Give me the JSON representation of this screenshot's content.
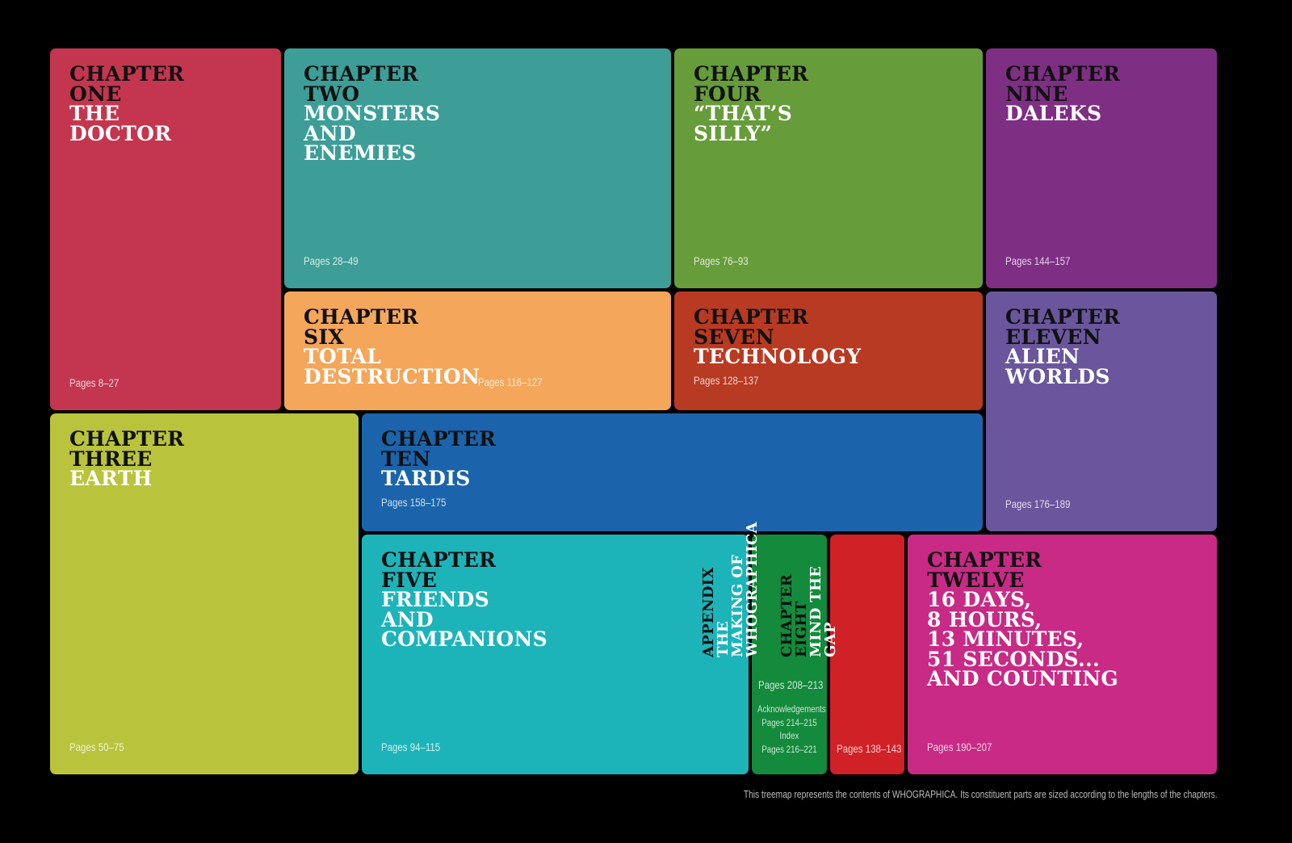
{
  "tiles": [
    {
      "id": "ch1",
      "kicker": [
        "Chapter",
        "One"
      ],
      "title": [
        "The",
        "Doctor"
      ],
      "pages": "Pages 8–27",
      "color": "#c4364f"
    },
    {
      "id": "ch2",
      "kicker": [
        "Chapter",
        "Two"
      ],
      "title": [
        "Monsters",
        "and",
        "Enemies"
      ],
      "pages": "Pages 28–49",
      "color": "#3d9e98"
    },
    {
      "id": "ch4",
      "kicker": [
        "Chapter",
        "Four"
      ],
      "title": [
        "“That’s",
        "Silly”"
      ],
      "pages": "Pages 76–93",
      "color": "#679c3a"
    },
    {
      "id": "ch9",
      "kicker": [
        "Chapter",
        "Nine"
      ],
      "title": [
        "Daleks"
      ],
      "pages": "Pages 144–157",
      "color": "#7e2f84"
    },
    {
      "id": "ch6",
      "kicker": [
        "Chapter",
        "Six"
      ],
      "title": [
        "Total",
        "Destruction"
      ],
      "pages": "Pages 116–127",
      "color": "#f4a65a"
    },
    {
      "id": "ch7",
      "kicker": [
        "Chapter",
        "Seven"
      ],
      "title": [
        "Technology"
      ],
      "pages": "Pages 128–137",
      "color": "#b83a22"
    },
    {
      "id": "ch11",
      "kicker": [
        "Chapter",
        "Eleven"
      ],
      "title": [
        "Alien",
        "Worlds"
      ],
      "pages": "Pages 176–189",
      "color": "#6a569c"
    },
    {
      "id": "ch3",
      "kicker": [
        "Chapter",
        "Three"
      ],
      "title": [
        "Earth"
      ],
      "pages": "Pages 50–75",
      "color": "#b9c43c"
    },
    {
      "id": "ch10",
      "kicker": [
        "Chapter",
        "Ten"
      ],
      "title": [
        "Tardis"
      ],
      "pages": "Pages 158–175",
      "color": "#1b64ab"
    },
    {
      "id": "ch5",
      "kicker": [
        "Chapter",
        "Five"
      ],
      "title": [
        "Friends",
        "and",
        "Companions"
      ],
      "pages": "Pages 94–115",
      "color": "#1db4b9"
    },
    {
      "id": "app",
      "kicker": [
        "Appendix"
      ],
      "title": [
        "The",
        "Making of",
        "Whographica"
      ],
      "pages": "Pages 208–213",
      "extra": [
        "Acknowledgements",
        "Pages 214–215",
        "Index",
        "Pages 216–221"
      ],
      "color": "#138a3c"
    },
    {
      "id": "ch8",
      "kicker": [
        "Chapter",
        "Eight"
      ],
      "title": [
        "Mind the",
        "Gap"
      ],
      "pages": "Pages 138–143",
      "color": "#d02127"
    },
    {
      "id": "ch12",
      "kicker": [
        "Chapter",
        "Twelve"
      ],
      "title": [
        "16 Days,",
        "8 Hours,",
        "13 Minutes,",
        "51 Seconds...",
        "and Counting"
      ],
      "pages": "Pages 190–207",
      "color": "#c82a85"
    }
  ],
  "caption": "This treemap represents the contents of WHOGRAPHICA. Its constituent parts are sized according to the lengths of the chapters."
}
